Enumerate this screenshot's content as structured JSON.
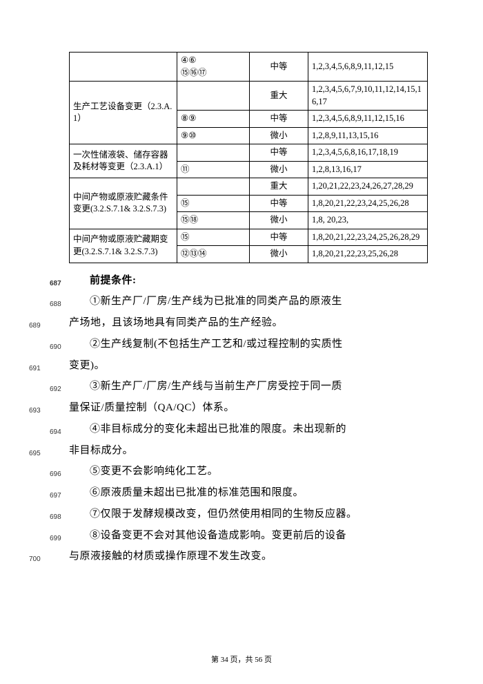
{
  "table": {
    "col_widths": [
      "156px",
      "105px",
      "85px",
      "auto"
    ],
    "rows": [
      {
        "c1": "",
        "c2": "④⑥\n⑮⑯⑰",
        "c3": "中等",
        "c4": "1,2,3,4,5,6,8,9,11,12,15",
        "c1_rowspan": 1
      },
      {
        "c1": "生产工艺设备变更（2.3.A.1）",
        "c1_rowspan": 3,
        "c2": "",
        "c3": "重大",
        "c4": "1,2,3,4,5,6,7,9,10,11,12,14,15,16,17"
      },
      {
        "c2": "⑧⑨",
        "c3": "中等",
        "c4": "1,2,3,4,5,6,8,9,11,12,15,16"
      },
      {
        "c2": "⑨⑩",
        "c3": "微小",
        "c4": "1,2,8,9,11,13,15,16"
      },
      {
        "c1": "一次性储液袋、储存容器及耗材等变更（2.3.A.1）",
        "c1_rowspan": 2,
        "c2": "",
        "c3": "中等",
        "c4": "1,2,3,4,5,6,8,16,17,18,19"
      },
      {
        "c2": "⑪",
        "c3": "微小",
        "c4": "1,2,8,13,16,17"
      },
      {
        "c1": "中间产物或原液贮藏条件变更(3.2.S.7.1& 3.2.S.7.3)",
        "c1_rowspan": 3,
        "c2": "",
        "c3": "重大",
        "c4": "1,20,21,22,23,24,26,27,28,29"
      },
      {
        "c2": "⑮",
        "c3": "中等",
        "c4": "1,8,20,21,22,23,24,25,26,28"
      },
      {
        "c2": "⑮⑱",
        "c3": "微小",
        "c4": "1,8, 20,23,"
      },
      {
        "c1": "中间产物或原液贮藏期变更(3.2.S.7.1& 3.2.S.7.3)",
        "c1_rowspan": 2,
        "c2": "⑮",
        "c3": "中等",
        "c4": "1,8,20,21,22,23,24,25,26,28,29"
      },
      {
        "c2": "⑫⑬⑭",
        "c3": "微小",
        "c4": "1,8,20,21,22,23,25,26,28"
      }
    ]
  },
  "heading": "前提条件:",
  "lines": [
    {
      "num": "687",
      "text": "前提条件:",
      "heading": true,
      "indent": false
    },
    {
      "num": "688",
      "text": "①新生产厂/厂房/生产线为已批准的同类产品的原液生",
      "indent": true
    },
    {
      "num": "689",
      "text": "产场地，且该场地具有同类产品的生产经验。",
      "indent": false
    },
    {
      "num": "690",
      "text": "②生产线复制(不包括生产工艺和/或过程控制的实质性",
      "indent": true
    },
    {
      "num": "691",
      "text": "变更)。",
      "indent": false
    },
    {
      "num": "692",
      "text": "③新生产厂/厂房/生产线与当前生产厂房受控于同一质",
      "indent": true
    },
    {
      "num": "693",
      "text": "量保证/质量控制（QA/QC）体系。",
      "indent": false
    },
    {
      "num": "694",
      "text": "④非目标成分的变化未超出已批准的限度。未出现新的",
      "indent": true
    },
    {
      "num": "695",
      "text": "非目标成分。",
      "indent": false
    },
    {
      "num": "696",
      "text": "⑤变更不会影响纯化工艺。",
      "indent": true
    },
    {
      "num": "697",
      "text": "⑥原液质量未超出已批准的标准范围和限度。",
      "indent": true
    },
    {
      "num": "698",
      "text": "⑦仅限于发酵规模改变，但仍然使用相同的生物反应器。",
      "indent": true
    },
    {
      "num": "699",
      "text": "⑧设备变更不会对其他设备造成影响。变更前后的设备",
      "indent": true
    },
    {
      "num": "700",
      "text": "与原液接触的材质或操作原理不发生改变。",
      "indent": false
    }
  ],
  "footer": {
    "prefix": "第 ",
    "page": "34",
    "mid": " 页，共 ",
    "total": "56",
    "suffix": " 页"
  }
}
